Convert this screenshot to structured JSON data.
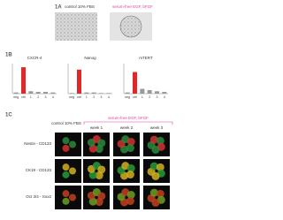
{
  "panel_a": {
    "label": "1A",
    "left_caption": "control 10% FBS",
    "right_caption": "serum-free EGF, bFGF"
  },
  "panel_b": {
    "label": "1B",
    "charts": [
      {
        "title": "CXCR-4",
        "categories": [
          "neg",
          "ctrl",
          "1",
          "2",
          "3",
          "4"
        ],
        "values": [
          1,
          22,
          2,
          1.5,
          1.5,
          1
        ],
        "ylim": [
          0,
          25
        ],
        "colors": [
          "#9a9a9a",
          "#e02828",
          "#9a9a9a",
          "#9a9a9a",
          "#9a9a9a",
          "#9a9a9a"
        ]
      },
      {
        "title": "Nanog",
        "categories": [
          "neg",
          "ctrl",
          "1",
          "2",
          "3",
          "4"
        ],
        "values": [
          0.5,
          20,
          1,
          1,
          0.5,
          0.5
        ],
        "ylim": [
          0,
          25
        ],
        "colors": [
          "#9a9a9a",
          "#e02828",
          "#9a9a9a",
          "#9a9a9a",
          "#9a9a9a",
          "#9a9a9a"
        ]
      },
      {
        "title": "mTERT",
        "categories": [
          "neg",
          "ctrl",
          "1",
          "2",
          "3",
          "4"
        ],
        "values": [
          1,
          18,
          4,
          3,
          2,
          1.5
        ],
        "ylim": [
          0,
          25
        ],
        "colors": [
          "#9a9a9a",
          "#e02828",
          "#9a9a9a",
          "#9a9a9a",
          "#9a9a9a",
          "#9a9a9a"
        ]
      }
    ]
  },
  "panel_c": {
    "label": "1C",
    "control_caption": "control 10% FBS",
    "serum_free_caption": "serum-free EGF, bFGF",
    "columns": [
      "week 1",
      "week 2",
      "week 3"
    ],
    "rows": [
      "Nestin - CD133",
      "CK19 - CD133",
      "Oct 3/4 - Sox2"
    ]
  }
}
